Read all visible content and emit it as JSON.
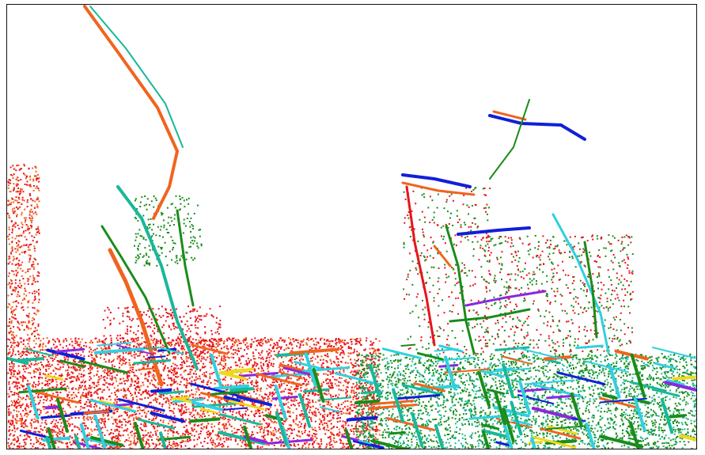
{
  "image": {
    "description_kind": "edge-detection rendering of plants",
    "palette": {
      "red": "#e8141c",
      "orange": "#f0641e",
      "green": "#1a8c1a",
      "teal": "#18b89a",
      "cyan": "#30d0e0",
      "blue": "#1020d8",
      "yellow": "#f0d81c",
      "purple": "#8a28e0",
      "background": "#ffffff",
      "border": "#111111"
    }
  }
}
